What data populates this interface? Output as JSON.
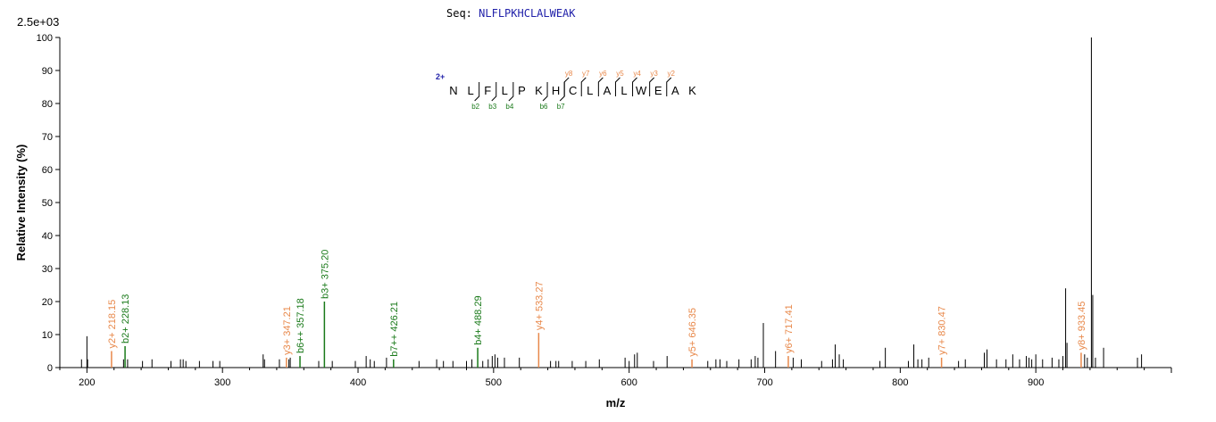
{
  "header": {
    "seq_label": "Seq:",
    "sequence": "NLFLPKHCLALWEAK",
    "y_max_label": "2.5e+03"
  },
  "colors": {
    "b_ion": "#1a7a1a",
    "y_ion": "#e8884a",
    "peak": "#000000",
    "charge": "#2222aa"
  },
  "chart_data": {
    "type": "bar",
    "xlabel": "m/z",
    "ylabel": "Relative   Intensity (%)",
    "xlim": [
      180,
      1000
    ],
    "ylim": [
      0,
      100
    ],
    "x_ticks": [
      200,
      300,
      400,
      500,
      600,
      700,
      800,
      900
    ],
    "y_ticks": [
      0,
      10,
      20,
      30,
      40,
      50,
      60,
      70,
      80,
      90,
      100
    ],
    "peaks": [
      {
        "x": 196,
        "y": 2.5
      },
      {
        "x": 200,
        "y": 9.5
      },
      {
        "x": 200.5,
        "y": 2.5
      },
      {
        "x": 218.15,
        "y": 5.0,
        "ion": "y",
        "label": "y2+ 218.15"
      },
      {
        "x": 227,
        "y": 2.5
      },
      {
        "x": 228.13,
        "y": 6.5,
        "ion": "b",
        "label": "b2+ 228.13"
      },
      {
        "x": 230,
        "y": 2.5
      },
      {
        "x": 241,
        "y": 2
      },
      {
        "x": 248,
        "y": 2.5
      },
      {
        "x": 262,
        "y": 2
      },
      {
        "x": 269,
        "y": 2.5
      },
      {
        "x": 271,
        "y": 2.5
      },
      {
        "x": 273,
        "y": 2
      },
      {
        "x": 283,
        "y": 2
      },
      {
        "x": 293,
        "y": 2
      },
      {
        "x": 298,
        "y": 2
      },
      {
        "x": 330,
        "y": 4
      },
      {
        "x": 331,
        "y": 2.5
      },
      {
        "x": 342,
        "y": 2.5
      },
      {
        "x": 347.21,
        "y": 3.0,
        "ion": "y",
        "label": "y3+ 347.21"
      },
      {
        "x": 349,
        "y": 2.5
      },
      {
        "x": 350,
        "y": 3
      },
      {
        "x": 357.18,
        "y": 3.5,
        "ion": "b",
        "label": "b6++ 357.18"
      },
      {
        "x": 371,
        "y": 2
      },
      {
        "x": 375.2,
        "y": 20,
        "ion": "b",
        "label": "b3+ 375.20"
      },
      {
        "x": 381,
        "y": 2
      },
      {
        "x": 398,
        "y": 2
      },
      {
        "x": 406,
        "y": 3.5
      },
      {
        "x": 409,
        "y": 2.5
      },
      {
        "x": 412,
        "y": 2
      },
      {
        "x": 421,
        "y": 3
      },
      {
        "x": 426.21,
        "y": 2.5,
        "ion": "b",
        "label": "b7++ 426.21"
      },
      {
        "x": 445,
        "y": 2
      },
      {
        "x": 458,
        "y": 2.5
      },
      {
        "x": 463,
        "y": 2
      },
      {
        "x": 470,
        "y": 2
      },
      {
        "x": 480,
        "y": 2
      },
      {
        "x": 484,
        "y": 2.5
      },
      {
        "x": 488.29,
        "y": 6,
        "ion": "b",
        "label": "b4+ 488.29"
      },
      {
        "x": 492,
        "y": 2
      },
      {
        "x": 496,
        "y": 2.5
      },
      {
        "x": 499,
        "y": 3.5
      },
      {
        "x": 501,
        "y": 4
      },
      {
        "x": 503,
        "y": 3
      },
      {
        "x": 508,
        "y": 3
      },
      {
        "x": 519,
        "y": 3
      },
      {
        "x": 533.27,
        "y": 10.5,
        "ion": "y",
        "label": "y4+ 533.27"
      },
      {
        "x": 542,
        "y": 2
      },
      {
        "x": 546,
        "y": 2
      },
      {
        "x": 548,
        "y": 2
      },
      {
        "x": 558,
        "y": 2
      },
      {
        "x": 568,
        "y": 2
      },
      {
        "x": 578,
        "y": 2.5
      },
      {
        "x": 597,
        "y": 3
      },
      {
        "x": 600,
        "y": 2
      },
      {
        "x": 604,
        "y": 4
      },
      {
        "x": 606,
        "y": 4.5
      },
      {
        "x": 618,
        "y": 2
      },
      {
        "x": 628,
        "y": 3.5
      },
      {
        "x": 646.35,
        "y": 2.5,
        "ion": "y",
        "label": "y5+ 646.35"
      },
      {
        "x": 658,
        "y": 2
      },
      {
        "x": 664,
        "y": 2.5
      },
      {
        "x": 667,
        "y": 2.5
      },
      {
        "x": 672,
        "y": 2
      },
      {
        "x": 681,
        "y": 2.5
      },
      {
        "x": 690,
        "y": 2.5
      },
      {
        "x": 693,
        "y": 3.5
      },
      {
        "x": 695,
        "y": 3
      },
      {
        "x": 699,
        "y": 13.5
      },
      {
        "x": 708,
        "y": 5
      },
      {
        "x": 717.41,
        "y": 3.5,
        "ion": "y",
        "label": "y6+ 717.41"
      },
      {
        "x": 721,
        "y": 3
      },
      {
        "x": 727,
        "y": 2.5
      },
      {
        "x": 742,
        "y": 2
      },
      {
        "x": 750,
        "y": 2.5
      },
      {
        "x": 752,
        "y": 7
      },
      {
        "x": 755,
        "y": 4
      },
      {
        "x": 758,
        "y": 2.5
      },
      {
        "x": 785,
        "y": 2
      },
      {
        "x": 789,
        "y": 6
      },
      {
        "x": 806,
        "y": 2
      },
      {
        "x": 810,
        "y": 7
      },
      {
        "x": 813,
        "y": 2.5
      },
      {
        "x": 816,
        "y": 2.5
      },
      {
        "x": 821,
        "y": 3
      },
      {
        "x": 830.47,
        "y": 3.0,
        "ion": "y",
        "label": "y7+ 830.47"
      },
      {
        "x": 843,
        "y": 2
      },
      {
        "x": 848,
        "y": 2.5
      },
      {
        "x": 862,
        "y": 4.5
      },
      {
        "x": 864,
        "y": 5.5
      },
      {
        "x": 871,
        "y": 2.5
      },
      {
        "x": 878,
        "y": 2.5
      },
      {
        "x": 883,
        "y": 4
      },
      {
        "x": 888,
        "y": 2.5
      },
      {
        "x": 893,
        "y": 3.5
      },
      {
        "x": 895,
        "y": 3
      },
      {
        "x": 897,
        "y": 2.5
      },
      {
        "x": 900,
        "y": 4
      },
      {
        "x": 905,
        "y": 2.5
      },
      {
        "x": 912,
        "y": 3
      },
      {
        "x": 917,
        "y": 2.5
      },
      {
        "x": 920,
        "y": 3.5
      },
      {
        "x": 922,
        "y": 24
      },
      {
        "x": 923,
        "y": 7.5
      },
      {
        "x": 933.45,
        "y": 4.5,
        "ion": "y",
        "label": "y8+ 933.45"
      },
      {
        "x": 936,
        "y": 4
      },
      {
        "x": 938,
        "y": 3
      },
      {
        "x": 941,
        "y": 100
      },
      {
        "x": 942,
        "y": 22
      },
      {
        "x": 944,
        "y": 3
      },
      {
        "x": 950,
        "y": 6
      },
      {
        "x": 975,
        "y": 3
      },
      {
        "x": 978,
        "y": 4
      }
    ],
    "fragment_map": {
      "charge": "2+",
      "residues": [
        "N",
        "L",
        "F",
        "L",
        "P",
        "K",
        "H",
        "C",
        "L",
        "A",
        "L",
        "W",
        "E",
        "A",
        "K"
      ],
      "b_ions": [
        {
          "after": 2,
          "label": "b2"
        },
        {
          "after": 3,
          "label": "b3"
        },
        {
          "after": 4,
          "label": "b4"
        },
        {
          "after": 6,
          "label": "b6"
        },
        {
          "after": 7,
          "label": "b7"
        }
      ],
      "y_ions": [
        {
          "after": 7,
          "label": "y8"
        },
        {
          "after": 8,
          "label": "y7"
        },
        {
          "after": 9,
          "label": "y6"
        },
        {
          "after": 10,
          "label": "y5"
        },
        {
          "after": 11,
          "label": "y4"
        },
        {
          "after": 12,
          "label": "y3"
        },
        {
          "after": 13,
          "label": "y2"
        }
      ]
    }
  }
}
